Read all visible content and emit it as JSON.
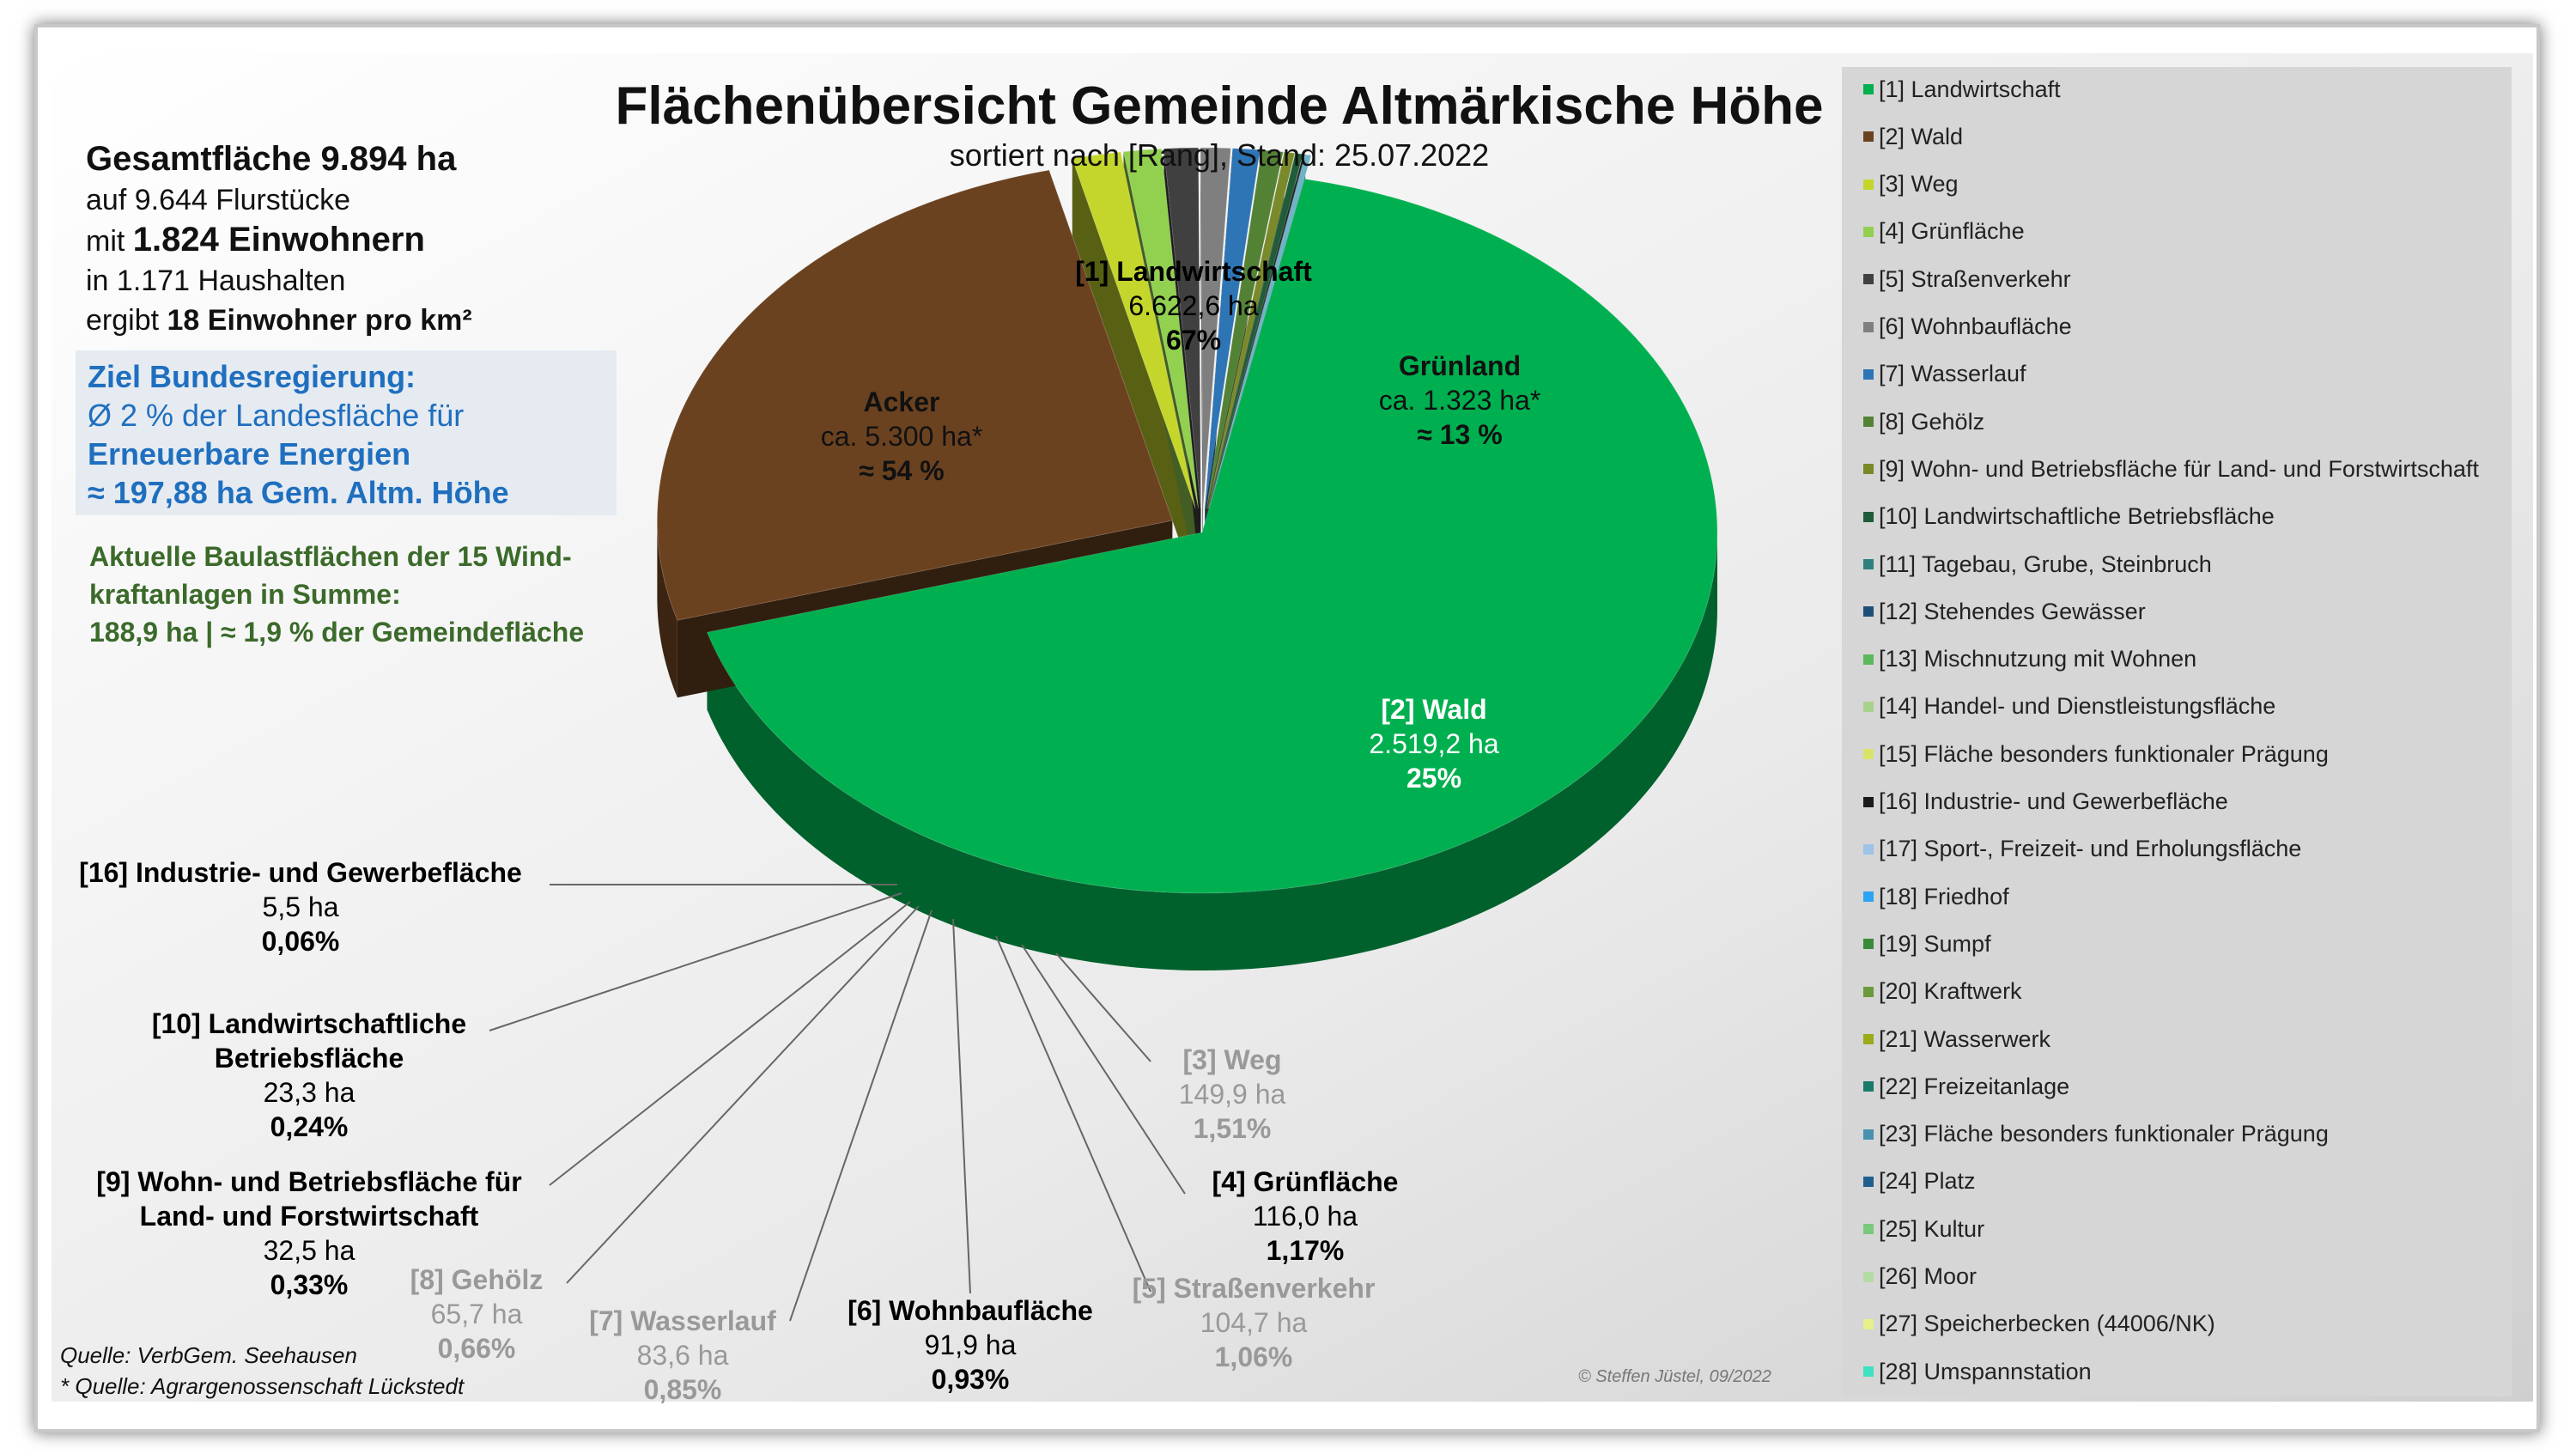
{
  "chart_data": {
    "type": "pie",
    "title": "Flächenübersicht Gemeinde Altmärkische Höhe",
    "subtitle": "sortiert nach [Rang], Stand: 25.07.2022",
    "slices": [
      {
        "rank": 1,
        "name": "[1] Landwirtschaft",
        "value_label": "6.622,6 ha",
        "percent_label": "67%",
        "value": 6622.6,
        "color": "#00b050"
      },
      {
        "rank": 2,
        "name": "[2] Wald",
        "value_label": "2.519,2 ha",
        "percent_label": "25%",
        "value": 2519.2,
        "color": "#6b4220"
      },
      {
        "rank": 3,
        "name": "[3] Weg",
        "value_label": "149,9 ha",
        "percent_label": "1,51%",
        "value": 149.9,
        "color": "#c4d62c"
      },
      {
        "rank": 4,
        "name": "[4] Grünfläche",
        "value_label": "116,0 ha",
        "percent_label": "1,17%",
        "value": 116.0,
        "color": "#92d050"
      },
      {
        "rank": 5,
        "name": "[5] Straßenverkehr",
        "value_label": "104,7 ha",
        "percent_label": "1,06%",
        "value": 104.7,
        "color": "#404040"
      },
      {
        "rank": 6,
        "name": "[6] Wohnbaufläche",
        "value_label": "91,9 ha",
        "percent_label": "0,93%",
        "value": 91.9,
        "color": "#7f7f7f"
      },
      {
        "rank": 7,
        "name": "[7] Wasserlauf",
        "value_label": "83,6 ha",
        "percent_label": "0,85%",
        "value": 83.6,
        "color": "#2e75b6"
      },
      {
        "rank": 8,
        "name": "[8] Gehölz",
        "value_label": "65,7 ha",
        "percent_label": "0,66%",
        "value": 65.7,
        "color": "#548235"
      },
      {
        "rank": 9,
        "name": "[9] Wohn- und Betriebsfläche für Land- und Forstwirtschaft",
        "value_label": "32,5 ha",
        "percent_label": "0,33%",
        "value": 32.5,
        "color": "#7a8a2a"
      },
      {
        "rank": 10,
        "name": "[10] Landwirtschaftliche Betriebsfläche",
        "value_label": "23,3 ha",
        "percent_label": "0,24%",
        "value": 23.3,
        "color": "#1f5c3a"
      },
      {
        "rank": 16,
        "name": "[16] Industrie- und Gewerbefläche",
        "value_label": "5,5 ha",
        "percent_label": "0,06%",
        "value": 5.5,
        "color": "#1a1a1a"
      },
      {
        "rank": 0,
        "name": "",
        "value_label": "",
        "percent_label": "",
        "value": 18.0,
        "color": "#6fb3c7"
      }
    ],
    "sub_labels": [
      {
        "name": "Acker",
        "value_label": "ca. 5.300 ha*",
        "percent_label": "≈ 54 %"
      },
      {
        "name": "Grünland",
        "value_label": "ca. 1.323 ha*",
        "percent_label": "≈ 13 %"
      }
    ]
  },
  "stats": {
    "total": "Gesamtfläche 9.894 ha",
    "parcels": "auf 9.644 Flurstücke",
    "pre_inhabitants": "mit",
    "inhabitants": "1.824 Einwohnern",
    "households": "in 1.171 Haushalten",
    "pre_density": "ergibt",
    "density": "18 Einwohner pro km²"
  },
  "goal": {
    "heading": "Ziel Bundesregierung:",
    "line1": "Ø 2 % der Landesfläche für",
    "line2": "Erneuerbare Energien",
    "line3": "≈ 197,88 ha Gem. Altm. Höhe"
  },
  "wind": {
    "line1": "Aktuelle Baulastflächen der 15 Wind-",
    "line2": "kraftanlagen in Summe:",
    "line3": "188,9 ha | ≈ 1,9 % der Gemeindefläche"
  },
  "sources": {
    "source1": "Quelle: VerbGem. Seehausen",
    "source2": "* Quelle: Agrargenossenschaft Lückstedt",
    "copyright": "© Steffen Jüstel, 09/2022"
  },
  "legend": [
    {
      "label": "[1] Landwirtschaft",
      "color": "#00b050"
    },
    {
      "label": "[2] Wald",
      "color": "#6b4220"
    },
    {
      "label": "[3] Weg",
      "color": "#c4d62c"
    },
    {
      "label": "[4] Grünfläche",
      "color": "#92d050"
    },
    {
      "label": "[5] Straßenverkehr",
      "color": "#404040"
    },
    {
      "label": "[6] Wohnbaufläche",
      "color": "#7f7f7f"
    },
    {
      "label": "[7] Wasserlauf",
      "color": "#2e75b6"
    },
    {
      "label": "[8] Gehölz",
      "color": "#548235"
    },
    {
      "label": "[9] Wohn- und Betriebsfläche für Land- und Forstwirtschaft",
      "color": "#7a8a2a"
    },
    {
      "label": "[10] Landwirtschaftliche Betriebsfläche",
      "color": "#1f5c3a"
    },
    {
      "label": "[11] Tagebau, Grube, Steinbruch",
      "color": "#2f7f7f"
    },
    {
      "label": "[12] Stehendes Gewässer",
      "color": "#1f4e79"
    },
    {
      "label": "[13] Mischnutzung mit Wohnen",
      "color": "#5cb85c"
    },
    {
      "label": "[14] Handel- und Dienstleistungsfläche",
      "color": "#a9d18e"
    },
    {
      "label": "[15] Fläche besonders funktionaler Prägung",
      "color": "#d9e36b"
    },
    {
      "label": "[16] Industrie- und Gewerbefläche",
      "color": "#1a1a1a"
    },
    {
      "label": "[17] Sport-, Freizeit- und Erholungsfläche",
      "color": "#9dc3e6"
    },
    {
      "label": "[18] Friedhof",
      "color": "#2ea3f2"
    },
    {
      "label": "[19] Sumpf",
      "color": "#3a8a3a"
    },
    {
      "label": "[20] Kraftwerk",
      "color": "#6a9a3a"
    },
    {
      "label": "[21] Wasserwerk",
      "color": "#9aaa1a"
    },
    {
      "label": "[22] Freizeitanlage",
      "color": "#1a7a6a"
    },
    {
      "label": "[23] Fläche besonders funktionaler Prägung",
      "color": "#4a90b0"
    },
    {
      "label": "[24] Platz",
      "color": "#1f5f8f"
    },
    {
      "label": "[25] Kultur",
      "color": "#7ac97a"
    },
    {
      "label": "[26] Moor",
      "color": "#b5dba5"
    },
    {
      "label": "[27] Speicherbecken (44006/NK)",
      "color": "#e6ef8a"
    },
    {
      "label": "[28] Umspannstation",
      "color": "#40e0c0"
    }
  ]
}
